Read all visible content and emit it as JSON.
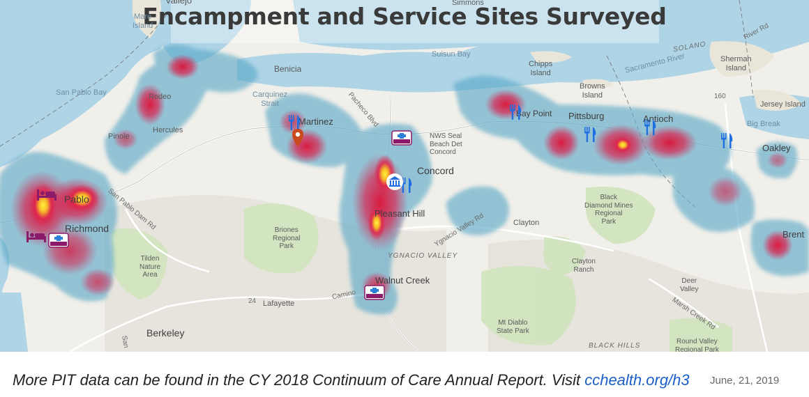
{
  "title": "Encampment and Service Sites Surveyed",
  "footer": {
    "note": "More PIT data can be found in the CY 2018 Continuum of Care Annual Report. Visit",
    "link": "cchealth.org/h3",
    "date": "June, 21, 2019"
  },
  "labels": {
    "vallejo": "Vallejo",
    "mare_island": "Mare\nIsland",
    "simmons": "Simmons",
    "san_pablo_bay": "San Pablo Bay",
    "benicia": "Benicia",
    "carquinez_strait": "Carquinez\nStrait",
    "suisun_bay": "Suisun Bay",
    "chipps_island": "Chipps\nIsland",
    "browns_island": "Browns\nIsland",
    "sherman_island": "Sherman\nIsland",
    "solano": "SOLANO",
    "sacramento_river": "Sacramento River",
    "river_rd": "River Rd",
    "jersey_island": "Jersey Island",
    "big_break": "Big Break",
    "oakley": "Oakley",
    "brentwood": "Brent",
    "rodeo": "Rodeo",
    "hercules": "Hercules",
    "pinole": "Pinole",
    "san_pablo": "Pablo",
    "richmond": "Richmond",
    "san_pablo_dam_rd": "San Pablo Dam Rd",
    "tilden": "Tilden\nNature\nArea",
    "martinez": "Martinez",
    "pacheco": "Pacheco Blvd",
    "nws": "NWS Seal\nBeach Det\nConcord",
    "concord": "Concord",
    "pleasant_hill": "Pleasant Hill",
    "briones": "Briones\nRegional\nPark",
    "ygnacio_valley_rd": "Ygnacio Valley Rd",
    "ygnacio_valley": "YGNACIO VALLEY",
    "clayton": "Clayton",
    "clayton_ranch": "Clayton\nRanch",
    "black_diamond": "Black\nDiamond Mines\nRegional\nPark",
    "bay_point": "Bay Point",
    "pittsburg": "Pittsburg",
    "antioch": "Antioch",
    "walnut_creek": "Walnut Creek",
    "lafayette": "Lafayette",
    "el_camino": "Camino",
    "berkeley": "Berkeley",
    "mt_diablo": "Mt Diablo\nState Park",
    "black_hills": "BLACK HILLS",
    "round_valley": "Round Valley\nRegional Park",
    "deer_valley": "Deer\nValley",
    "marsh_creek_rd": "Marsh Creek Rd",
    "hwy_24": "24",
    "hwy_160": "160",
    "san": "San"
  },
  "icons": {
    "shelter": "bed-icon",
    "food": "fork-knife-icon",
    "health": "health-center-icon",
    "government": "government-building-icon",
    "location": "map-pin-icon"
  },
  "colors": {
    "water": "#aed4e6",
    "land": "#f1efe9",
    "park": "#cfe3bc",
    "heat_low": "#5aa8c8",
    "heat_mid": "#d8234a",
    "heat_high": "#ffe23a",
    "icon_blue": "#1f6fe0",
    "icon_purple": "#8b1a6b",
    "link": "#1a5fc7"
  }
}
